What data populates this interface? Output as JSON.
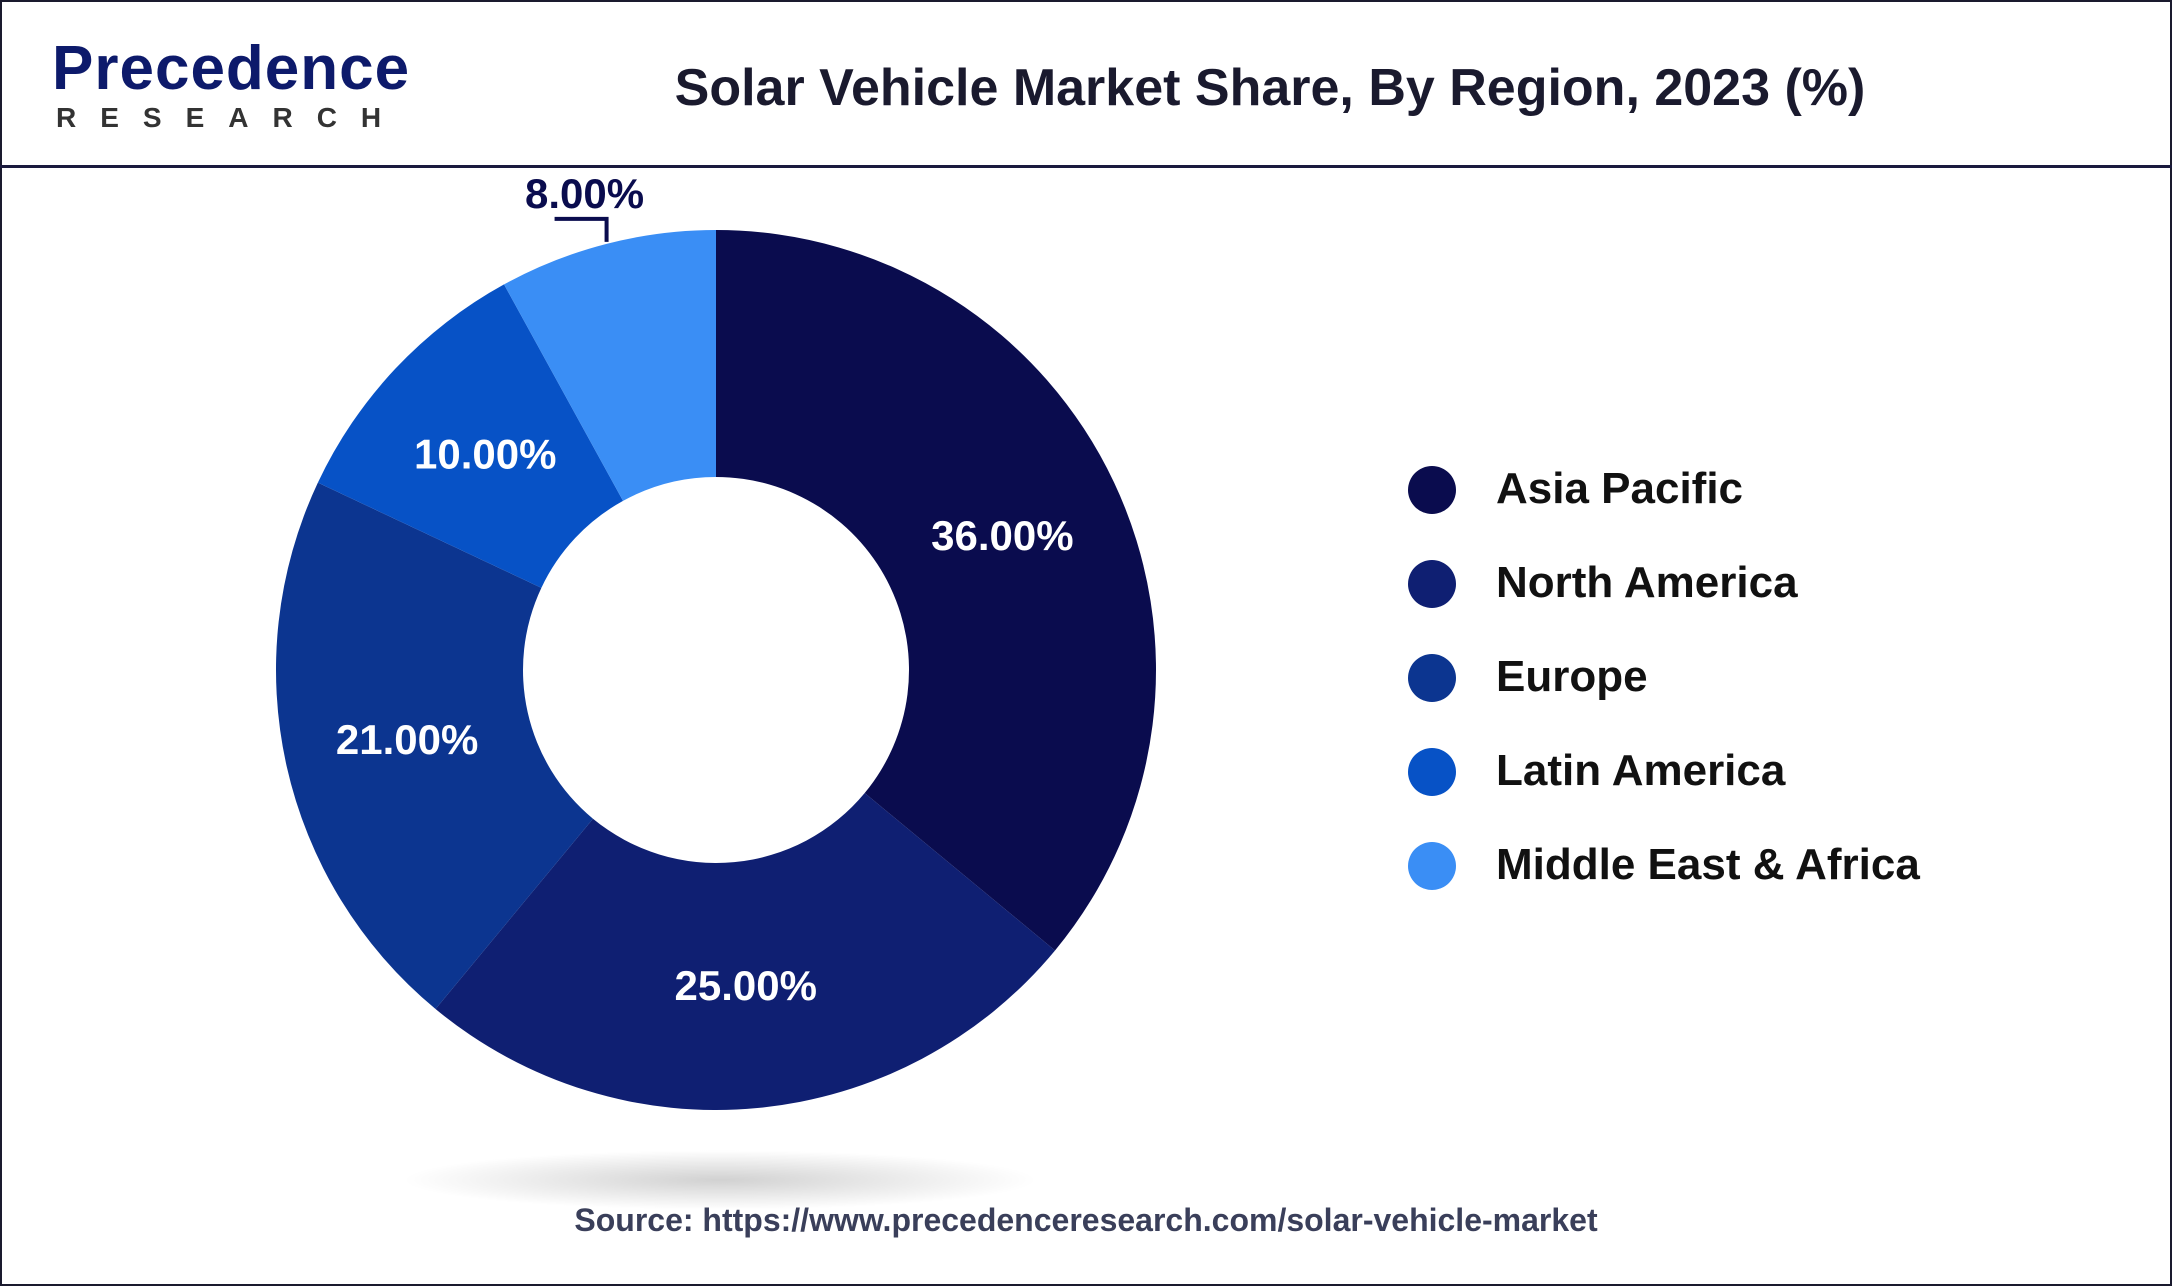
{
  "header": {
    "logo_main": "Precedence",
    "logo_sub": "RESEARCH",
    "title": "Solar Vehicle Market Share, By Region, 2023 (%)"
  },
  "source": "Source: https://www.precedenceresearch.com/solar-vehicle-market",
  "chart_data": {
    "type": "pie",
    "variant": "donut",
    "title": "Solar Vehicle Market Share, By Region, 2023 (%)",
    "categories": [
      "Asia Pacific",
      "North America",
      "Europe",
      "Latin America",
      "Middle East & Africa"
    ],
    "values": [
      36,
      25,
      21,
      10,
      8
    ],
    "labels": [
      "36.00%",
      "25.00%",
      "21.00%",
      "10.00%",
      "8.00%"
    ],
    "colors": [
      "#0a0c4e",
      "#0f1f72",
      "#0c3590",
      "#0752c6",
      "#3a8ef5"
    ],
    "legend_position": "right"
  }
}
